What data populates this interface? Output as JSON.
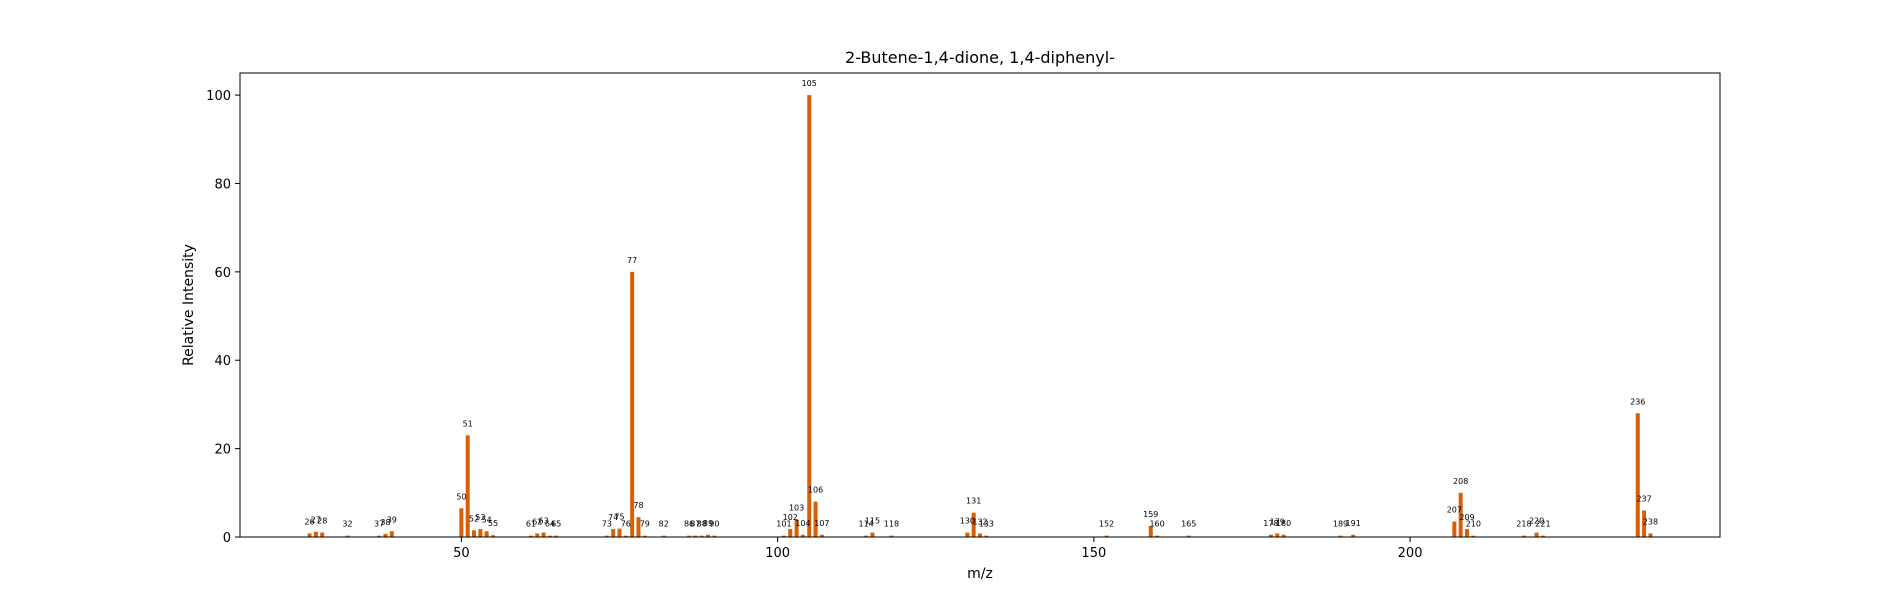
{
  "chart_data": {
    "type": "bar",
    "title": "2-Butene-1,4-dione, 1,4-diphenyl-",
    "xlabel": "m/z",
    "ylabel": "Relative Intensity",
    "xlim": [
      15,
      249
    ],
    "ylim": [
      0,
      105
    ],
    "xticks": [
      50,
      100,
      150,
      200
    ],
    "yticks": [
      0,
      20,
      40,
      60,
      80,
      100
    ],
    "grid": false,
    "bar_color": "#d95f02",
    "peaks": [
      {
        "mz": 26,
        "intensity": 0.8
      },
      {
        "mz": 27,
        "intensity": 1.2
      },
      {
        "mz": 28,
        "intensity": 1.0
      },
      {
        "mz": 32,
        "intensity": 0.3
      },
      {
        "mz": 37,
        "intensity": 0.3
      },
      {
        "mz": 38,
        "intensity": 0.7
      },
      {
        "mz": 39,
        "intensity": 1.3
      },
      {
        "mz": 50,
        "intensity": 6.5
      },
      {
        "mz": 51,
        "intensity": 23.0
      },
      {
        "mz": 52,
        "intensity": 1.5
      },
      {
        "mz": 53,
        "intensity": 1.8
      },
      {
        "mz": 54,
        "intensity": 1.3
      },
      {
        "mz": 55,
        "intensity": 0.4
      },
      {
        "mz": 61,
        "intensity": 0.3
      },
      {
        "mz": 62,
        "intensity": 0.8
      },
      {
        "mz": 63,
        "intensity": 1.0
      },
      {
        "mz": 64,
        "intensity": 0.3
      },
      {
        "mz": 65,
        "intensity": 0.3
      },
      {
        "mz": 73,
        "intensity": 0.3
      },
      {
        "mz": 74,
        "intensity": 1.8
      },
      {
        "mz": 75,
        "intensity": 1.9
      },
      {
        "mz": 76,
        "intensity": 0.3
      },
      {
        "mz": 77,
        "intensity": 60.0
      },
      {
        "mz": 78,
        "intensity": 4.5
      },
      {
        "mz": 79,
        "intensity": 0.3
      },
      {
        "mz": 82,
        "intensity": 0.3
      },
      {
        "mz": 86,
        "intensity": 0.3
      },
      {
        "mz": 87,
        "intensity": 0.3
      },
      {
        "mz": 88,
        "intensity": 0.3
      },
      {
        "mz": 89,
        "intensity": 0.5
      },
      {
        "mz": 90,
        "intensity": 0.3
      },
      {
        "mz": 101,
        "intensity": 0.3
      },
      {
        "mz": 102,
        "intensity": 1.8
      },
      {
        "mz": 103,
        "intensity": 4.0
      },
      {
        "mz": 104,
        "intensity": 0.5
      },
      {
        "mz": 105,
        "intensity": 100.0
      },
      {
        "mz": 106,
        "intensity": 8.0
      },
      {
        "mz": 107,
        "intensity": 0.5
      },
      {
        "mz": 114,
        "intensity": 0.3
      },
      {
        "mz": 115,
        "intensity": 1.0
      },
      {
        "mz": 118,
        "intensity": 0.3
      },
      {
        "mz": 130,
        "intensity": 1.0
      },
      {
        "mz": 131,
        "intensity": 5.5
      },
      {
        "mz": 132,
        "intensity": 0.8
      },
      {
        "mz": 133,
        "intensity": 0.3
      },
      {
        "mz": 152,
        "intensity": 0.3
      },
      {
        "mz": 159,
        "intensity": 2.5
      },
      {
        "mz": 160,
        "intensity": 0.3
      },
      {
        "mz": 165,
        "intensity": 0.3
      },
      {
        "mz": 178,
        "intensity": 0.5
      },
      {
        "mz": 179,
        "intensity": 0.8
      },
      {
        "mz": 180,
        "intensity": 0.5
      },
      {
        "mz": 189,
        "intensity": 0.3
      },
      {
        "mz": 191,
        "intensity": 0.5
      },
      {
        "mz": 207,
        "intensity": 3.5
      },
      {
        "mz": 208,
        "intensity": 10.0
      },
      {
        "mz": 209,
        "intensity": 1.8
      },
      {
        "mz": 210,
        "intensity": 0.3
      },
      {
        "mz": 218,
        "intensity": 0.3
      },
      {
        "mz": 220,
        "intensity": 1.0
      },
      {
        "mz": 221,
        "intensity": 0.3
      },
      {
        "mz": 236,
        "intensity": 28.0
      },
      {
        "mz": 237,
        "intensity": 6.0
      },
      {
        "mz": 238,
        "intensity": 0.8
      }
    ]
  }
}
